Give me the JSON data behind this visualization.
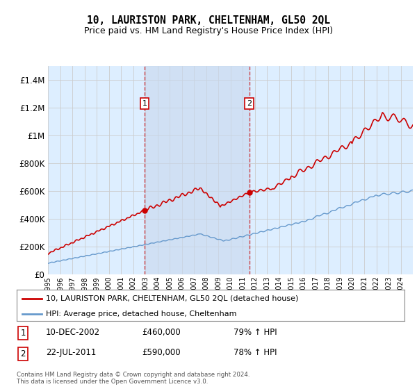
{
  "title": "10, LAURISTON PARK, CHELTENHAM, GL50 2QL",
  "subtitle": "Price paid vs. HM Land Registry's House Price Index (HPI)",
  "legend_line1": "10, LAURISTON PARK, CHELTENHAM, GL50 2QL (detached house)",
  "legend_line2": "HPI: Average price, detached house, Cheltenham",
  "sale1_date": "10-DEC-2002",
  "sale1_price": 460000,
  "sale1_pct": "79% ↑ HPI",
  "sale2_date": "22-JUL-2011",
  "sale2_price": 590000,
  "sale2_pct": "78% ↑ HPI",
  "footer": "Contains HM Land Registry data © Crown copyright and database right 2024.\nThis data is licensed under the Open Government Licence v3.0.",
  "red_color": "#cc0000",
  "blue_color": "#6699cc",
  "shade_color": "#ddeeff",
  "grid_color": "#cccccc",
  "background_color": "#ddeeff",
  "ylim": [
    0,
    1500000
  ],
  "yticks": [
    0,
    200000,
    400000,
    600000,
    800000,
    1000000,
    1200000,
    1400000
  ],
  "ytick_labels": [
    "£0",
    "£200K",
    "£400K",
    "£600K",
    "£800K",
    "£1M",
    "£1.2M",
    "£1.4M"
  ],
  "sale1_x": 2002.95,
  "sale2_x": 2011.55,
  "xmin": 1995,
  "xmax": 2025.0
}
